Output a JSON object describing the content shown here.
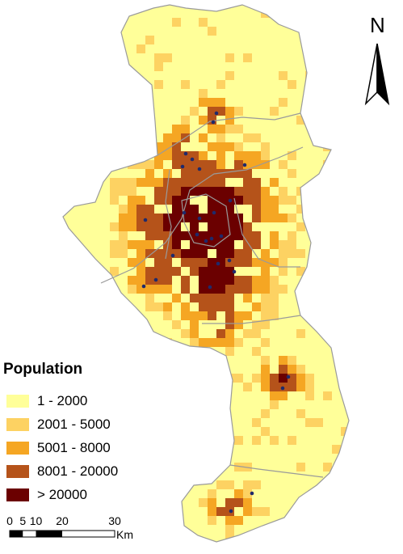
{
  "map": {
    "colors": {
      "class1": "#ffff99",
      "class2": "#fdd262",
      "class3": "#f5a623",
      "class4": "#b5531a",
      "class5": "#6b0000",
      "boundary": "#9a9a9a",
      "points": "#1f2a6b"
    }
  },
  "legend": {
    "title": "Population",
    "items": [
      {
        "label": "1 - 2000",
        "color": "#ffff99"
      },
      {
        "label": "2001 - 5000",
        "color": "#fdd262"
      },
      {
        "label": "5001 - 8000",
        "color": "#f5a623"
      },
      {
        "label": "8001 - 20000",
        "color": "#b5531a"
      },
      {
        "label": "> 20000",
        "color": "#6b0000"
      }
    ]
  },
  "north_arrow": {
    "label": "N"
  },
  "scale_bar": {
    "ticks": [
      "0",
      "5",
      "10",
      "20",
      "30"
    ],
    "unit": "Km"
  }
}
